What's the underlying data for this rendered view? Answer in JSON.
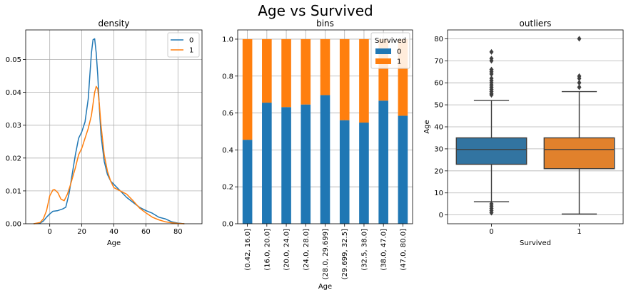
{
  "suptitle": "Age   vs   Survived",
  "colors": {
    "c0": "#1f77b4",
    "c1": "#ff7f0e",
    "grid": "#b0b0b0",
    "box0": "#3274a1",
    "box1": "#e1812c",
    "line": "#3f3f3f"
  },
  "chart_data": [
    {
      "type": "line",
      "title": "density",
      "xlabel": "Age",
      "ylabel": "",
      "xlim": [
        -15,
        95
      ],
      "ylim": [
        0,
        0.059
      ],
      "xticks": [
        0,
        20,
        40,
        60,
        80
      ],
      "yticks": [
        0.0,
        0.01,
        0.02,
        0.03,
        0.04,
        0.05
      ],
      "ytick_labels": [
        "0.00",
        "0.01",
        "0.02",
        "0.03",
        "0.04",
        "0.05"
      ],
      "grid": true,
      "legend": "top-right",
      "series": [
        {
          "name": "0",
          "x": [
            -10,
            -6,
            -4,
            -2,
            0,
            2,
            5,
            8,
            10,
            12,
            14,
            16,
            18,
            20,
            22,
            24,
            25,
            26,
            27,
            28,
            29,
            30,
            31,
            32,
            34,
            36,
            38,
            40,
            44,
            48,
            52,
            56,
            60,
            64,
            68,
            72,
            76,
            80,
            84
          ],
          "y": [
            0.0,
            0.0002,
            0.0008,
            0.002,
            0.003,
            0.0038,
            0.004,
            0.0045,
            0.005,
            0.009,
            0.015,
            0.021,
            0.026,
            0.028,
            0.031,
            0.038,
            0.045,
            0.052,
            0.056,
            0.0563,
            0.052,
            0.045,
            0.035,
            0.027,
            0.019,
            0.015,
            0.013,
            0.012,
            0.01,
            0.008,
            0.0065,
            0.005,
            0.004,
            0.0032,
            0.002,
            0.0015,
            0.0006,
            0.0002,
            0.0
          ]
        },
        {
          "name": "1",
          "x": [
            -10,
            -6,
            -4,
            -2,
            0,
            2,
            3,
            5,
            7,
            9,
            11,
            13,
            16,
            18,
            20,
            22,
            24,
            26,
            28,
            29,
            30,
            31,
            32,
            34,
            36,
            38,
            40,
            44,
            48,
            52,
            56,
            60,
            64,
            68,
            72,
            76,
            80,
            84
          ],
          "y": [
            0.0,
            0.0004,
            0.0015,
            0.004,
            0.0085,
            0.0103,
            0.0104,
            0.0095,
            0.0075,
            0.007,
            0.009,
            0.012,
            0.017,
            0.021,
            0.023,
            0.026,
            0.029,
            0.033,
            0.04,
            0.0418,
            0.041,
            0.036,
            0.03,
            0.021,
            0.016,
            0.013,
            0.011,
            0.01,
            0.009,
            0.007,
            0.0048,
            0.0033,
            0.002,
            0.0012,
            0.0006,
            0.0003,
            0.0001,
            0.0
          ]
        }
      ]
    },
    {
      "type": "bar",
      "title": "bins",
      "xlabel": "Age",
      "ylabel": "",
      "stacked": true,
      "categories": [
        "(0.42, 16.0]",
        "(16.0, 20.0]",
        "(20.0, 24.0]",
        "(24.0, 28.0]",
        "(28.0, 29.699]",
        "(29.699, 32.5]",
        "(32.5, 38.0]",
        "(38.0, 47.0]",
        "(47.0, 80.0]"
      ],
      "ylim": [
        0,
        1.05
      ],
      "yticks": [
        0.0,
        0.2,
        0.4,
        0.6,
        0.8,
        1.0
      ],
      "ytick_labels": [
        "0.0",
        "0.2",
        "0.4",
        "0.6",
        "0.8",
        "1.0"
      ],
      "grid": true,
      "legend": "top-right",
      "legend_title": "Survived",
      "series": [
        {
          "name": "0",
          "values": [
            0.455,
            0.656,
            0.632,
            0.646,
            0.697,
            0.561,
            0.548,
            0.667,
            0.585
          ]
        },
        {
          "name": "1",
          "values": [
            0.545,
            0.344,
            0.368,
            0.354,
            0.303,
            0.439,
            0.452,
            0.333,
            0.415
          ]
        }
      ]
    },
    {
      "type": "box",
      "title": "outliers",
      "xlabel": "Survived",
      "ylabel": "Age",
      "categories": [
        "0",
        "1"
      ],
      "ylim": [
        -4,
        84
      ],
      "yticks": [
        0,
        10,
        20,
        30,
        40,
        50,
        60,
        70,
        80
      ],
      "grid": true,
      "boxes": [
        {
          "q1": 23,
          "median": 29.7,
          "q3": 35,
          "whisker_low": 6,
          "whisker_high": 52,
          "outliers": [
            74,
            71,
            70,
            66,
            65,
            64,
            62,
            61,
            60,
            59,
            58,
            57,
            56,
            55,
            54.5,
            5,
            4,
            3,
            2,
            1
          ]
        },
        {
          "q1": 21,
          "median": 29.7,
          "q3": 35,
          "whisker_low": 0.42,
          "whisker_high": 56,
          "outliers": [
            80,
            63,
            62,
            60,
            58
          ]
        }
      ]
    }
  ]
}
